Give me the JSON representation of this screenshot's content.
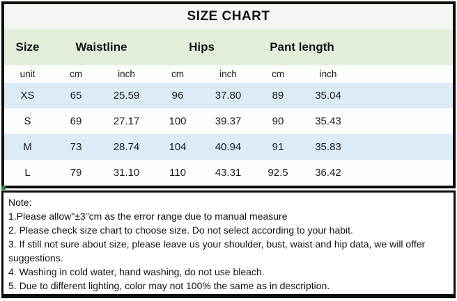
{
  "title": "SIZE CHART",
  "table": {
    "column_groups": [
      {
        "label": "Size"
      },
      {
        "label": "Waistline"
      },
      {
        "label": "Hips"
      },
      {
        "label": "Pant length"
      }
    ],
    "unit_row": [
      "unit",
      "cm",
      "inch",
      "cm",
      "inch",
      "cm",
      "inch"
    ],
    "rows": [
      {
        "size": "XS",
        "values": [
          "65",
          "25.59",
          "96",
          "37.80",
          "89",
          "35.04"
        ]
      },
      {
        "size": "S",
        "values": [
          "69",
          "27.17",
          "100",
          "39.37",
          "90",
          "35.43"
        ]
      },
      {
        "size": "M",
        "values": [
          "73",
          "28.74",
          "104",
          "40.94",
          "91",
          "35.83"
        ]
      },
      {
        "size": "L",
        "values": [
          "79",
          "31.10",
          "110",
          "43.31",
          "92.5",
          "36.42"
        ]
      }
    ]
  },
  "notes": {
    "heading": "Note:",
    "lines": [
      "1.Please allow\"±3\"cm as the error range due to manual measure",
      "2. Please check size chart to choose size. Do not select according to your habit.",
      "3. If still not sure about size, please leave us your shoulder, bust, waist and hip data, we will offer suggestions.",
      "4. Washing in cold water, hand washing, do not use bleach.",
      "5. Due to different lighting, color may not 100% the same as in description."
    ]
  },
  "colors": {
    "header_green": "#e3efdc",
    "row_blue": "#dcebf6",
    "title_band_bg": "#f5f5f2",
    "border_black": "#0b0b0b",
    "handle_green": "#2e7d32"
  }
}
